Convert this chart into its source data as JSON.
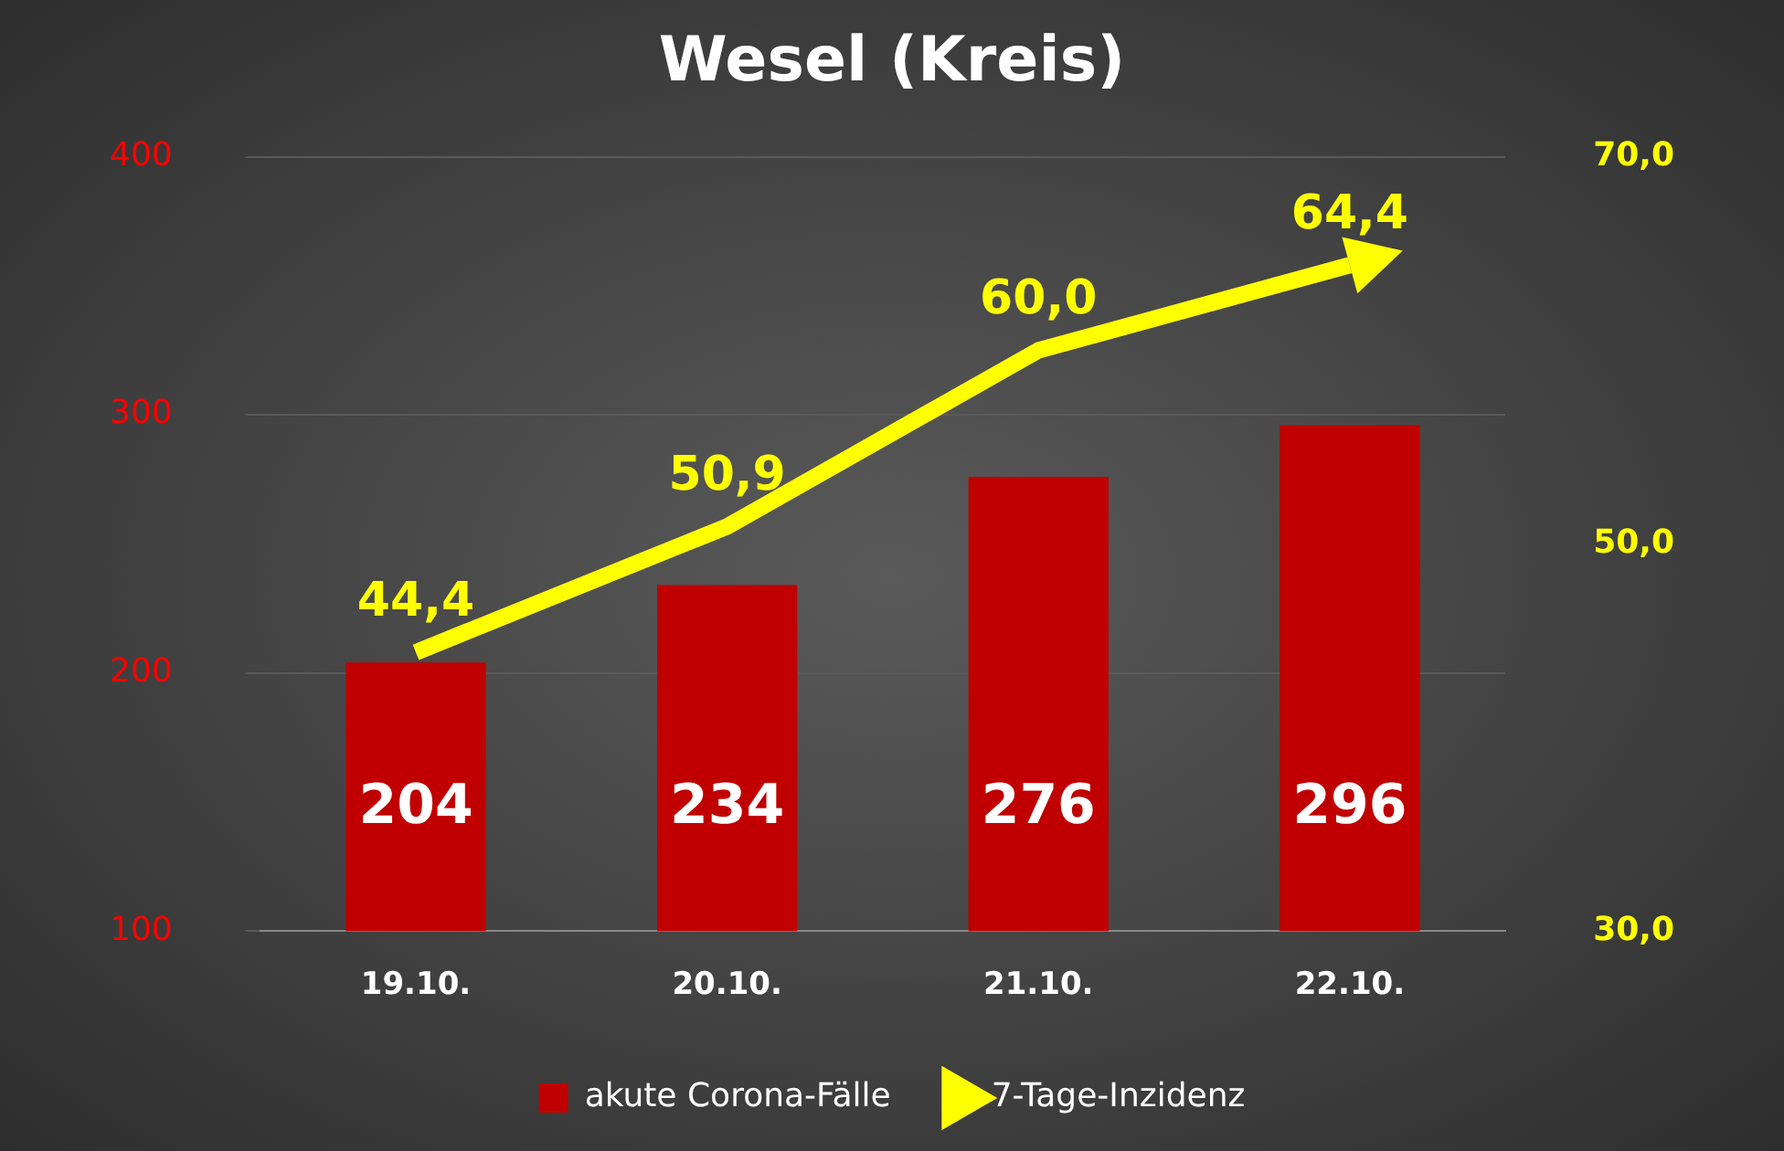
{
  "chart_data": {
    "type": "bar",
    "title": "Wesel (Kreis)",
    "categories": [
      "19.10.",
      "20.10.",
      "21.10.",
      "22.10."
    ],
    "series": [
      {
        "name": "akute Corona-Fälle",
        "color": "#c00000",
        "values": [
          204,
          234,
          276,
          296
        ],
        "value_labels": [
          "204",
          "234",
          "276",
          "296"
        ]
      },
      {
        "name": "7-Tage-Inzidenz",
        "type": "line",
        "axis": "y2",
        "color": "#ffff00",
        "values": [
          44.4,
          50.9,
          60.0,
          64.4
        ],
        "value_labels": [
          "44,4",
          "50,9",
          "60,0",
          "64,4"
        ]
      }
    ],
    "ylim": [
      100,
      400
    ],
    "yticks": [
      100,
      200,
      300,
      400
    ],
    "y2lim": [
      30,
      70
    ],
    "y2ticks": [
      {
        "value": 30,
        "label": "30,0"
      },
      {
        "value": 50,
        "label": "50,0"
      },
      {
        "value": 70,
        "label": "70,0"
      }
    ],
    "grid": "y",
    "legend": "bottom"
  }
}
